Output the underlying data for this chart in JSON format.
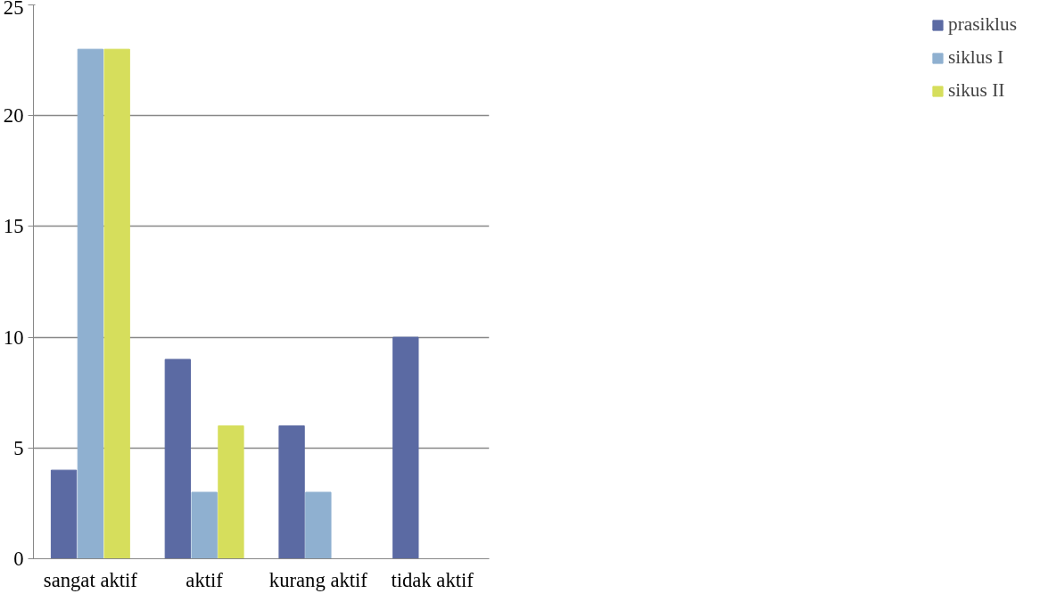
{
  "chart_data": {
    "type": "bar",
    "categories": [
      "sangat aktif",
      "aktif",
      "kurang aktif",
      "tidak aktif"
    ],
    "series": [
      {
        "name": "prasiklus",
        "color": "#5b6aa3",
        "values": [
          4,
          9,
          6,
          10
        ]
      },
      {
        "name": "siklus I",
        "color": "#8fb0d0",
        "values": [
          23,
          3,
          3,
          0
        ]
      },
      {
        "name": "sikus II",
        "color": "#d6de5c",
        "values": [
          23,
          6,
          0,
          0
        ]
      }
    ],
    "ylim": [
      0,
      25
    ],
    "yticks": [
      0,
      5,
      10,
      15,
      20,
      25
    ],
    "grid": "y",
    "legend": "right"
  }
}
